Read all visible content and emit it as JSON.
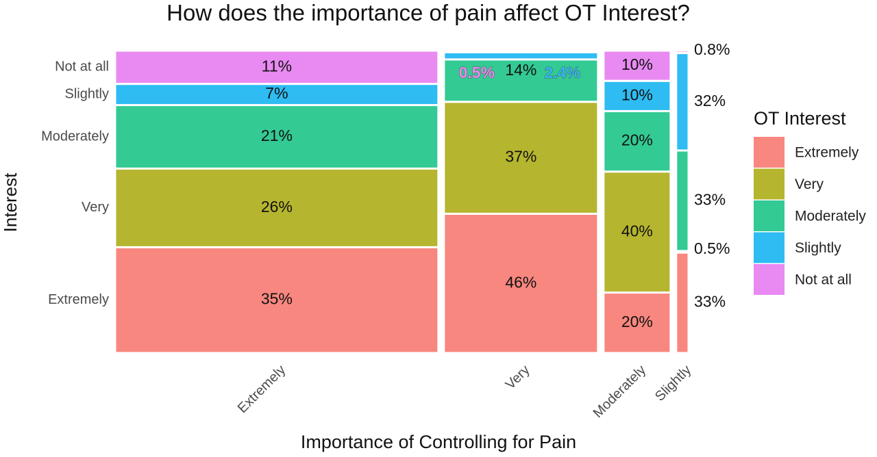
{
  "chart_data": {
    "type": "mosaic",
    "title": "How does the importance of pain affect OT Interest?",
    "xlabel": "Importance of Controlling for Pain",
    "ylabel": "Interest",
    "legend": {
      "title": "OT Interest",
      "placement": "right",
      "items": [
        {
          "label": "Extremely",
          "color": "#F8877F"
        },
        {
          "label": "Very",
          "color": "#B5B52F"
        },
        {
          "label": "Moderately",
          "color": "#33CA94"
        },
        {
          "label": "Slightly",
          "color": "#2EBCF2"
        },
        {
          "label": "Not at all",
          "color": "#E88AF2"
        }
      ]
    },
    "y_tick_labels": [
      "Not at all",
      "Slightly",
      "Moderately",
      "Very",
      "Extremely"
    ],
    "categories": [
      "Extremely",
      "Very",
      "Moderately",
      "Slightly"
    ],
    "column_shares": [
      0.65,
      0.31,
      0.135,
      0.025
    ],
    "series": [
      {
        "name": "Extremely",
        "values": [
          35,
          46,
          20,
          33
        ]
      },
      {
        "name": "Very",
        "values": [
          26,
          37,
          40,
          0.5
        ]
      },
      {
        "name": "Moderately",
        "values": [
          21,
          14,
          20,
          33
        ]
      },
      {
        "name": "Slightly",
        "values": [
          7,
          2.4,
          10,
          32
        ]
      },
      {
        "name": "Not at all",
        "values": [
          11,
          0.5,
          10,
          0.8
        ]
      }
    ],
    "labels": [
      [
        "35%",
        "26%",
        "21%",
        "7%",
        "11%"
      ],
      [
        "46%",
        "37%",
        "14%",
        "2.4%",
        "0.5%"
      ],
      [
        "20%",
        "40%",
        "20%",
        "10%",
        "10%"
      ],
      [
        "33%",
        "0.5%",
        "33%",
        "32%",
        "0.8%"
      ]
    ]
  }
}
